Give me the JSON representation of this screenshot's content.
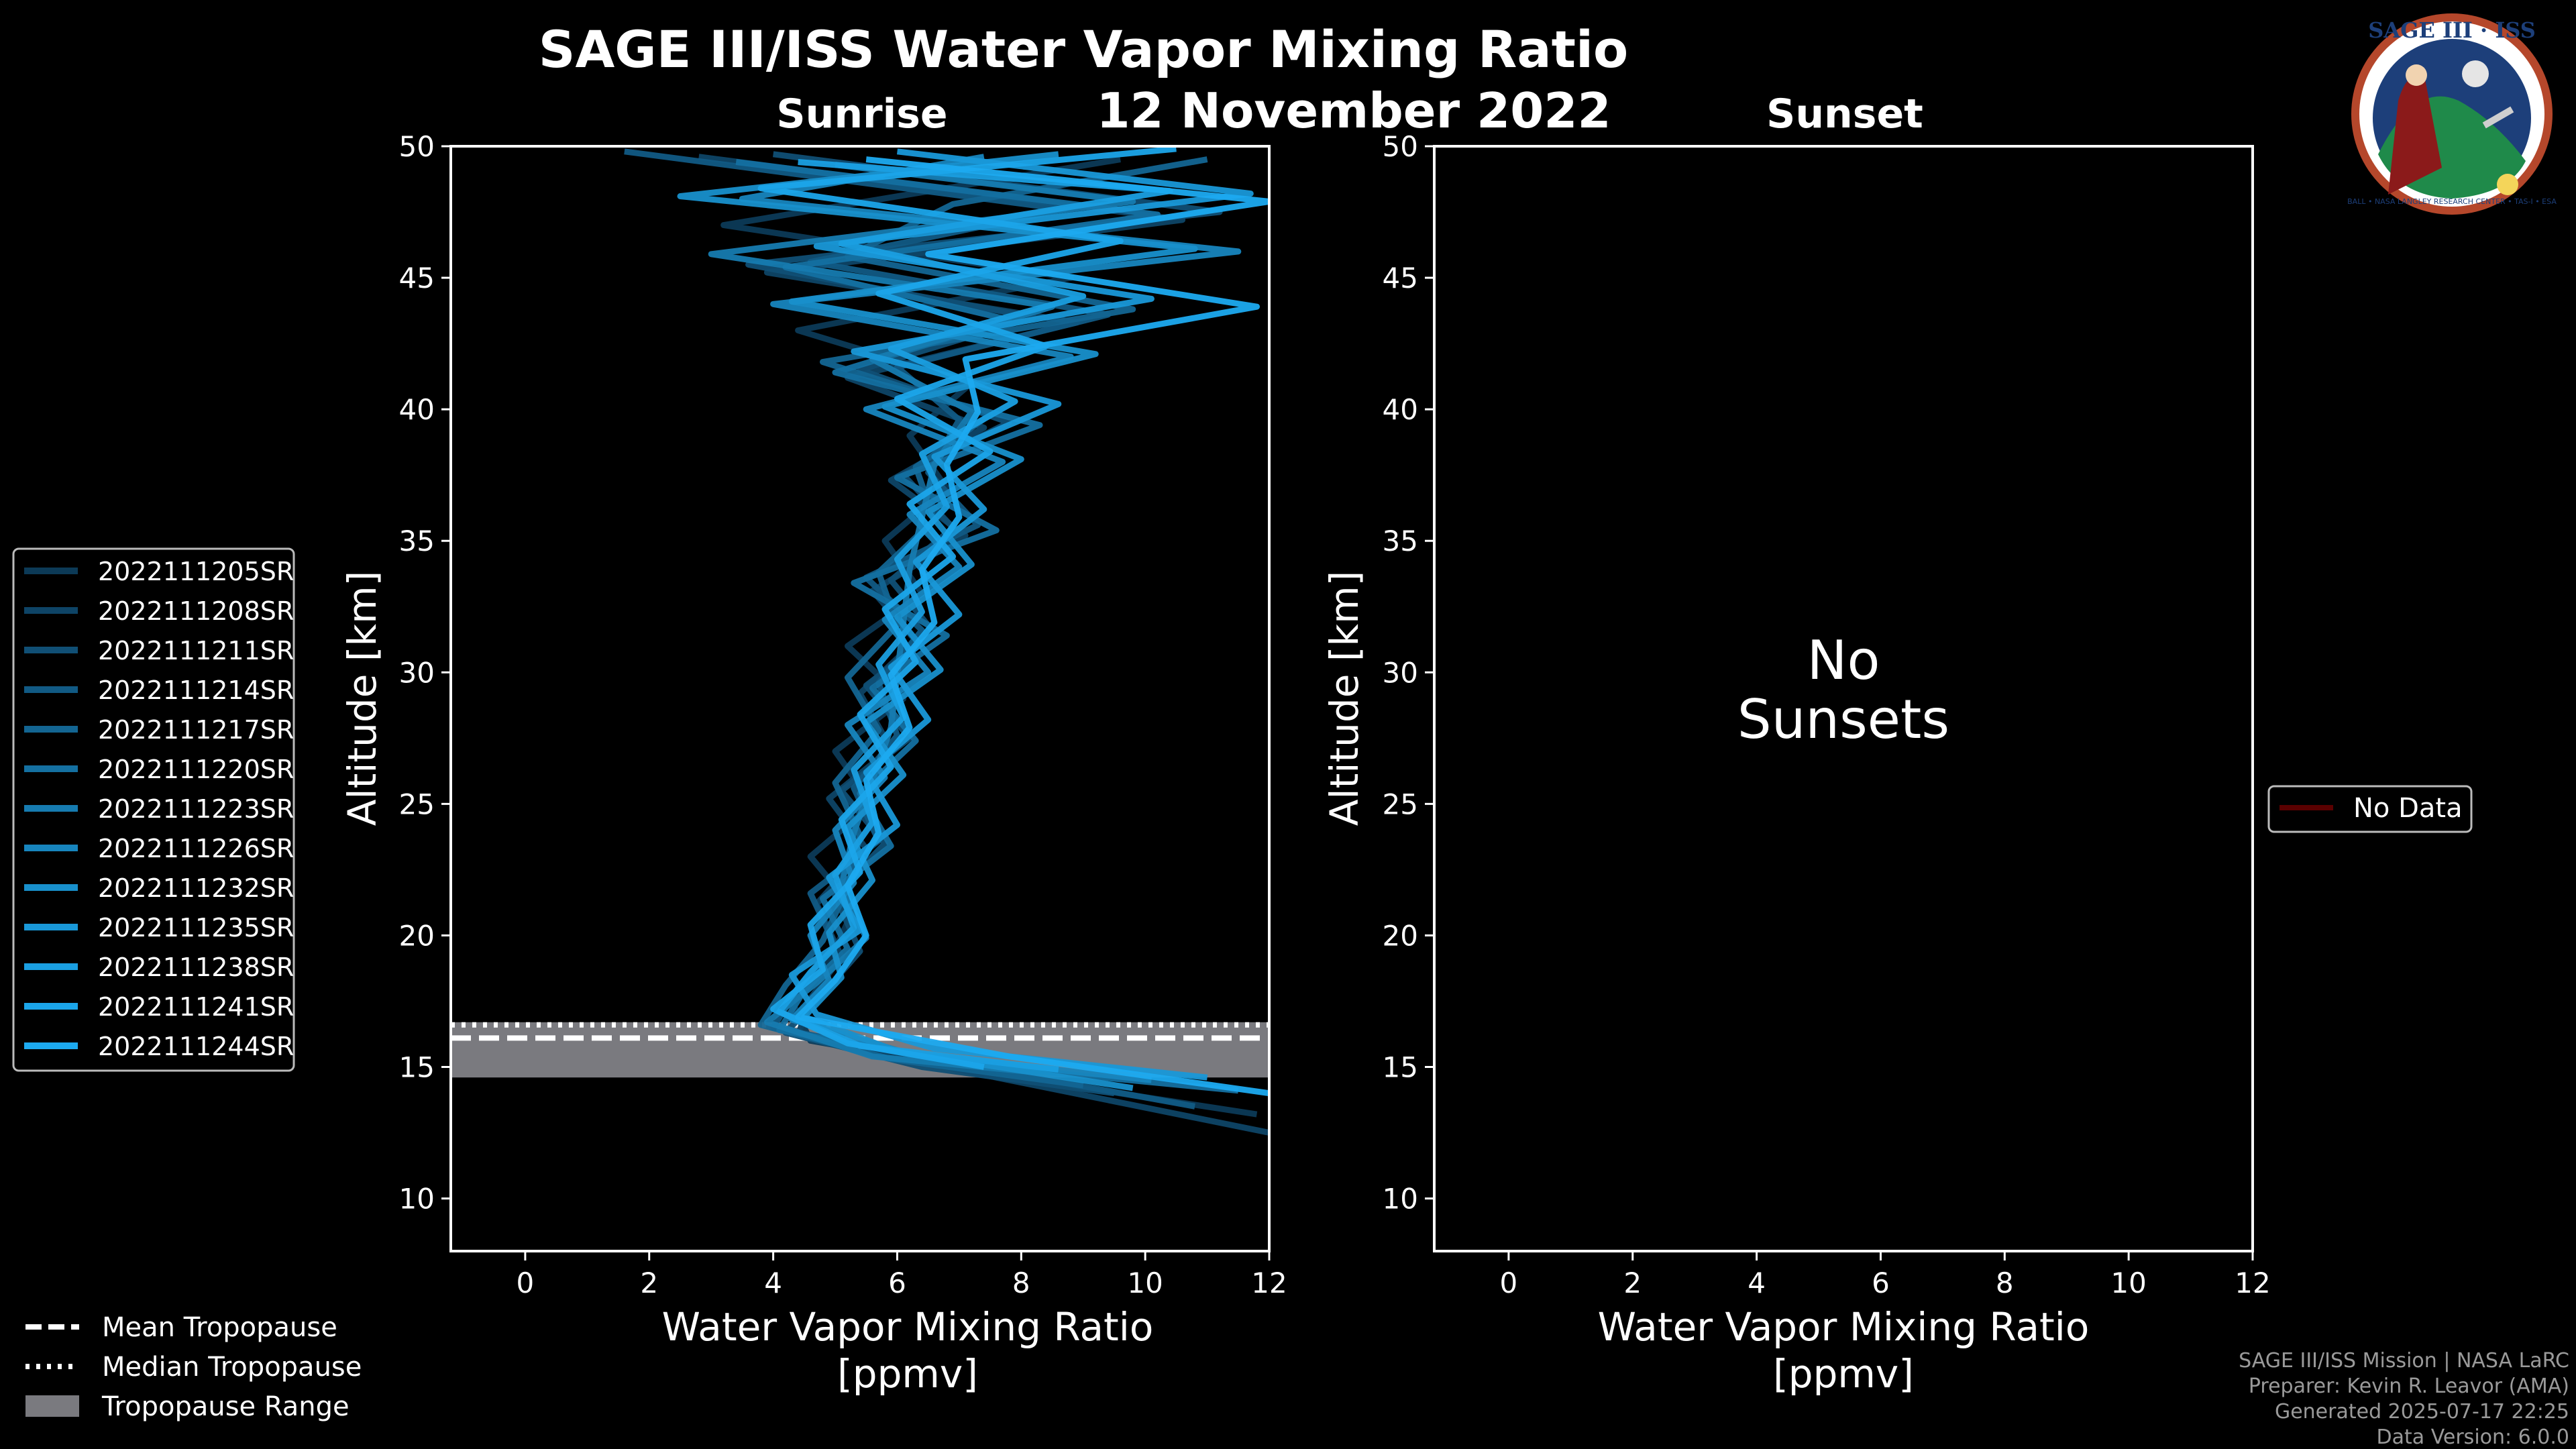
{
  "title": "SAGE III/ISS Water Vapor Mixing Ratio",
  "date": "12 November 2022",
  "colors": {
    "background": "#000000",
    "series": [
      "#0c3a57",
      "#0e4466",
      "#104f75",
      "#115a84",
      "#136592",
      "#1470a1",
      "#167bb0",
      "#1785be",
      "#1890cc",
      "#1998d8",
      "#1a9fe2",
      "#1ba5ea",
      "#1caaf0"
    ],
    "tropopause_range": "#7a7a7f",
    "no_data": "#5a0000"
  },
  "logo": {
    "text_top": "SAGE III · ISS",
    "text_ring": "BALL • NASA LANGLEY RESEARCH CENTER • TAS-I • ESA"
  },
  "credits": {
    "mission": "SAGE III/ISS Mission | NASA LaRC",
    "preparer": "Preparer: Kevin R. Leavor (AMA)",
    "generated": "Generated 2025-07-17 22:25",
    "version": "Data Version: 6.0.0"
  },
  "tropopause_legend": {
    "mean": "Mean Tropopause",
    "median": "Median Tropopause",
    "range": "Tropopause Range"
  },
  "sunset_legend": {
    "label": "No Data"
  },
  "chart_data": [
    {
      "type": "line",
      "panel": "Sunrise",
      "title": "Sunrise",
      "xlabel": "Water Vapor Mixing Ratio",
      "xlabel_units": "[ppmv]",
      "ylabel": "Altitude [km]",
      "xlim": [
        -1.2,
        12
      ],
      "ylim": [
        8,
        50
      ],
      "xticks": [
        0,
        2,
        4,
        6,
        8,
        10,
        12
      ],
      "yticks": [
        10,
        15,
        20,
        25,
        30,
        35,
        40,
        45,
        50
      ],
      "tropopause": {
        "mean_km": 16.1,
        "median_km": 16.6,
        "range_km": [
          14.6,
          16.7
        ]
      },
      "series": [
        {
          "name": "2022111205SR",
          "y": [
            13.2,
            14.5,
            16,
            17.5,
            19,
            21,
            23,
            25,
            27,
            29,
            31,
            33,
            35,
            37,
            39,
            41,
            43,
            45,
            47,
            49.5
          ],
          "x": [
            11.8,
            8.2,
            4.6,
            4.3,
            4.9,
            5.3,
            4.6,
            5.6,
            5.0,
            6.1,
            5.2,
            6.4,
            5.8,
            6.8,
            6.2,
            7.2,
            4.4,
            8.8,
            3.2,
            9.6
          ]
        },
        {
          "name": "2022111208SR",
          "y": [
            12.5,
            14.6,
            16.2,
            17.6,
            19.2,
            21.2,
            23.3,
            25.2,
            27.1,
            29.2,
            31.2,
            33.1,
            35.2,
            37.3,
            39.3,
            41.2,
            43.3,
            45.2,
            47.2,
            49.6
          ],
          "x": [
            12.0,
            7.6,
            4.4,
            4.6,
            5.1,
            4.7,
            5.5,
            4.9,
            5.9,
            5.4,
            6.3,
            5.6,
            7.1,
            5.9,
            7.4,
            5.2,
            8.9,
            3.9,
            10.6,
            2.8
          ]
        },
        {
          "name": "2022111211SR",
          "y": [
            14.0,
            15.0,
            16.3,
            17.8,
            19.4,
            21.5,
            23.5,
            25.5,
            27.5,
            29.5,
            31.5,
            33.5,
            35.5,
            37.5,
            39.5,
            41.5,
            43.5,
            45.5,
            47.5,
            49.7
          ],
          "x": [
            9.5,
            6.4,
            4.2,
            4.8,
            5.4,
            5.0,
            5.8,
            5.1,
            6.2,
            5.5,
            6.6,
            5.9,
            6.9,
            6.1,
            7.8,
            5.4,
            8.2,
            3.6,
            11.2,
            4.0
          ]
        },
        {
          "name": "2022111214SR",
          "y": [
            13.5,
            15.2,
            16.5,
            18.0,
            19.6,
            21.6,
            23.6,
            25.6,
            27.6,
            29.6,
            31.6,
            33.6,
            35.6,
            37.6,
            39.6,
            41.6,
            43.6,
            45.6,
            47.6,
            49.8
          ],
          "x": [
            10.8,
            6.8,
            4.0,
            4.4,
            5.0,
            4.6,
            5.7,
            5.3,
            6.0,
            5.7,
            6.4,
            5.5,
            7.3,
            6.5,
            7.0,
            6.0,
            9.4,
            4.6,
            8.7,
            1.6
          ]
        },
        {
          "name": "2022111217SR",
          "y": [
            14.3,
            15.3,
            16.6,
            18.1,
            19.8,
            21.8,
            23.8,
            25.8,
            27.8,
            29.8,
            31.8,
            33.8,
            35.8,
            37.8,
            39.8,
            41.8,
            43.8,
            45.8,
            47.8,
            49.5
          ],
          "x": [
            9.0,
            5.9,
            3.8,
            4.2,
            4.8,
            5.2,
            5.4,
            5.0,
            5.7,
            5.2,
            6.0,
            5.7,
            6.6,
            6.3,
            7.5,
            4.8,
            9.8,
            5.2,
            6.9,
            11.0
          ]
        },
        {
          "name": "2022111220SR",
          "y": [
            14.1,
            15.1,
            16.4,
            17.9,
            19.5,
            21.4,
            23.4,
            25.4,
            27.4,
            29.4,
            31.4,
            33.4,
            35.4,
            37.4,
            39.4,
            41.4,
            43.4,
            45.4,
            47.4,
            49.4
          ],
          "x": [
            11.5,
            7.1,
            4.1,
            4.5,
            5.2,
            4.8,
            5.9,
            5.4,
            6.3,
            5.6,
            6.8,
            5.3,
            7.6,
            6.0,
            8.3,
            5.0,
            7.8,
            4.2,
            10.2,
            3.4
          ]
        },
        {
          "name": "2022111223SR",
          "y": [
            14.8,
            15.4,
            16.7,
            18.2,
            19.9,
            21.9,
            23.9,
            25.9,
            27.9,
            29.9,
            31.9,
            33.9,
            35.9,
            37.9,
            39.9,
            41.9,
            43.9,
            45.9,
            47.9,
            49.3
          ],
          "x": [
            8.2,
            5.6,
            3.9,
            4.7,
            5.5,
            5.1,
            5.3,
            5.6,
            5.9,
            6.0,
            6.1,
            6.2,
            6.4,
            6.6,
            7.2,
            5.6,
            8.5,
            3.0,
            9.8,
            5.0
          ]
        },
        {
          "name": "2022111226SR",
          "y": [
            14.5,
            15.5,
            16.8,
            18.3,
            20.0,
            22.0,
            24.0,
            26.0,
            28.0,
            30.0,
            32.0,
            34.0,
            36.0,
            38.0,
            40.0,
            42.0,
            44.0,
            46.0,
            48.0,
            49.6
          ],
          "x": [
            10.1,
            6.2,
            4.3,
            4.9,
            4.6,
            5.3,
            5.0,
            5.8,
            5.2,
            6.5,
            5.8,
            7.0,
            6.2,
            7.7,
            5.5,
            8.8,
            4.0,
            11.5,
            3.5,
            7.4
          ]
        },
        {
          "name": "2022111232SR",
          "y": [
            14.2,
            15.6,
            16.9,
            18.4,
            20.1,
            22.1,
            24.1,
            26.1,
            28.1,
            30.1,
            32.1,
            34.1,
            36.1,
            38.1,
            40.1,
            42.1,
            44.1,
            46.1,
            48.1,
            49.7
          ],
          "x": [
            9.8,
            6.0,
            4.5,
            5.1,
            4.9,
            5.6,
            5.2,
            6.1,
            5.5,
            6.7,
            6.0,
            7.2,
            6.5,
            8.0,
            5.8,
            9.2,
            4.3,
            10.8,
            2.5,
            8.6
          ]
        },
        {
          "name": "2022111235SR",
          "y": [
            14.6,
            15.7,
            17.0,
            18.5,
            20.2,
            22.2,
            24.2,
            26.2,
            28.2,
            30.2,
            32.2,
            34.2,
            36.2,
            38.2,
            40.2,
            42.2,
            44.2,
            46.2,
            48.2,
            49.8
          ],
          "x": [
            11.0,
            6.6,
            4.7,
            4.3,
            5.4,
            4.9,
            6.0,
            5.5,
            6.5,
            5.9,
            7.0,
            6.3,
            7.4,
            6.6,
            8.6,
            5.3,
            10.1,
            4.7,
            11.7,
            6.0
          ]
        },
        {
          "name": "2022111238SR",
          "y": [
            14.9,
            15.8,
            17.1,
            18.6,
            20.3,
            22.3,
            24.3,
            26.3,
            28.3,
            30.3,
            32.3,
            34.3,
            36.3,
            38.3,
            40.3,
            42.3,
            44.3,
            46.3,
            48.3,
            49.4
          ],
          "x": [
            8.6,
            5.4,
            4.1,
            4.6,
            5.3,
            5.0,
            5.6,
            5.3,
            6.1,
            5.7,
            6.4,
            6.0,
            6.8,
            6.4,
            7.9,
            5.9,
            9.0,
            5.1,
            10.4,
            4.4
          ]
        },
        {
          "name": "2022111241SR",
          "y": [
            15.0,
            15.9,
            17.2,
            18.7,
            20.4,
            22.4,
            24.4,
            26.4,
            28.4,
            30.4,
            32.4,
            34.4,
            36.4,
            38.4,
            40.4,
            42.4,
            44.4,
            46.4,
            48.4,
            49.9
          ],
          "x": [
            7.4,
            5.2,
            4.0,
            4.8,
            4.6,
            5.4,
            5.1,
            5.9,
            5.4,
            6.3,
            5.8,
            6.9,
            6.2,
            7.5,
            6.0,
            8.4,
            5.7,
            9.6,
            3.8,
            10.5
          ]
        },
        {
          "name": "2022111244SR",
          "y": [
            14.0,
            15.4,
            16.9,
            18.3,
            20.0,
            21.9,
            23.9,
            25.9,
            27.9,
            29.9,
            31.9,
            33.9,
            35.9,
            37.9,
            39.9,
            41.9,
            43.9,
            45.9,
            47.9,
            49.5
          ],
          "x": [
            12.0,
            7.8,
            4.4,
            5.0,
            5.5,
            5.2,
            5.7,
            5.5,
            6.2,
            5.9,
            6.6,
            6.4,
            7.0,
            6.8,
            7.3,
            7.1,
            11.8,
            6.5,
            12.0,
            5.5
          ]
        }
      ]
    },
    {
      "type": "line",
      "panel": "Sunset",
      "title": "Sunset",
      "xlabel": "Water Vapor Mixing Ratio",
      "xlabel_units": "[ppmv]",
      "ylabel": "Altitude [km]",
      "xlim": [
        -1.2,
        12
      ],
      "ylim": [
        8,
        50
      ],
      "xticks": [
        0,
        2,
        4,
        6,
        8,
        10,
        12
      ],
      "yticks": [
        10,
        15,
        20,
        25,
        30,
        35,
        40,
        45,
        50
      ],
      "annotation_line1": "No",
      "annotation_line2": "Sunsets",
      "series": []
    }
  ]
}
